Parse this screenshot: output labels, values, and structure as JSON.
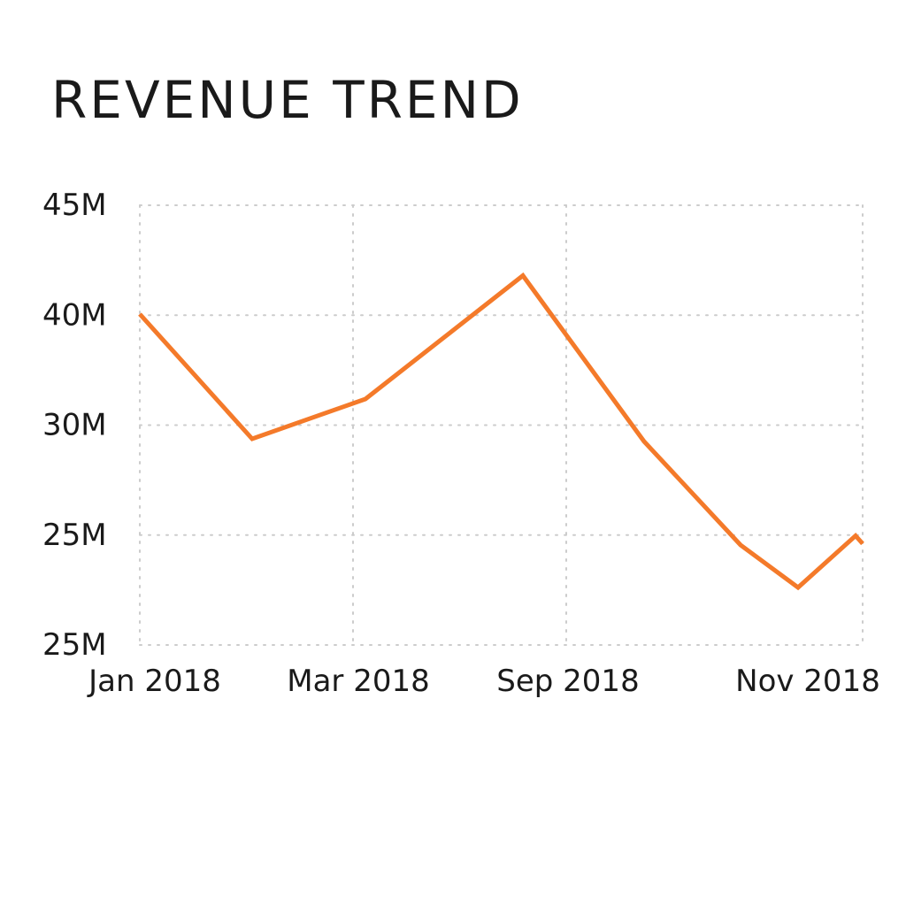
{
  "chart_data": {
    "type": "line",
    "title": "REVENUE TREND",
    "xlabel": "",
    "ylabel": "",
    "y_tick_labels": [
      "45M",
      "40M",
      "30M",
      "25M",
      "25M"
    ],
    "x_tick_labels": [
      "Jan 2018",
      "Mar 2018",
      "Sep 2018",
      "Nov 2018"
    ],
    "grid": true,
    "series": [
      {
        "color": "#f47a2a",
        "points": [
          {
            "x": "Jan 2018",
            "y": 40
          },
          {
            "x": "Feb 2018",
            "y": 30.6
          },
          {
            "x": "Mar 2018",
            "y": 33.6
          },
          {
            "x": "Aug 2018",
            "y": 42.9
          },
          {
            "x": "Sep 2018",
            "y": 30.4
          },
          {
            "x": "Oct 2018",
            "y": 22.6
          },
          {
            "x": "Nov 2018",
            "y": 19.4
          },
          {
            "x": "Nov 2018",
            "y": 23.3
          },
          {
            "x": "Dec 2018",
            "y": 22.7
          }
        ]
      }
    ]
  }
}
